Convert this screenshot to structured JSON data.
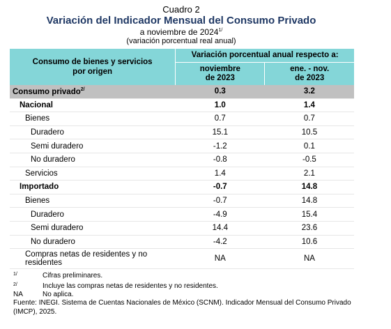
{
  "header": {
    "cuadro": "Cuadro 2",
    "title": "Variación del Indicador Mensual del Consumo Privado",
    "subtitle": "a noviembre de 2024",
    "subtitle_sup": "1/",
    "note": "(variación porcentual real anual)"
  },
  "table": {
    "label_header": [
      "Consumo de bienes y servicios",
      "por origen"
    ],
    "group_header": "Variación porcentual anual respecto a:",
    "subheaders": [
      [
        "noviembre",
        "de 2023"
      ],
      [
        "ene. - nov.",
        "de 2023"
      ]
    ],
    "rows": [
      {
        "label": "Consumo privado",
        "sup": "2/",
        "values": [
          "0.3",
          "3.2"
        ],
        "level": 0,
        "bold": true,
        "shaded": true
      },
      {
        "label": "Nacional",
        "values": [
          "1.0",
          "1.4"
        ],
        "level": 1,
        "bold": true
      },
      {
        "label": "Bienes",
        "values": [
          "0.7",
          "0.7"
        ],
        "level": 2
      },
      {
        "label": "Duradero",
        "values": [
          "15.1",
          "10.5"
        ],
        "level": 3
      },
      {
        "label": "Semi duradero",
        "values": [
          "-1.2",
          "0.1"
        ],
        "level": 3
      },
      {
        "label": "No duradero",
        "values": [
          "-0.8",
          "-0.5"
        ],
        "level": 3
      },
      {
        "label": "Servicios",
        "values": [
          "1.4",
          "2.1"
        ],
        "level": 2
      },
      {
        "label": "Importado",
        "values": [
          "-0.7",
          "14.8"
        ],
        "level": 1,
        "bold": true
      },
      {
        "label": "Bienes",
        "values": [
          "-0.7",
          "14.8"
        ],
        "level": 2
      },
      {
        "label": "Duradero",
        "values": [
          "-4.9",
          "15.4"
        ],
        "level": 3
      },
      {
        "label": "Semi duradero",
        "values": [
          "14.4",
          "23.6"
        ],
        "level": 3
      },
      {
        "label": "No duradero",
        "values": [
          "-4.2",
          "10.6"
        ],
        "level": 3
      },
      {
        "label": "Compras netas de residentes y no residentes",
        "values": [
          "NA",
          "NA"
        ],
        "level": 2
      }
    ]
  },
  "footnotes": [
    {
      "mark": "1/",
      "text": "Cifras preliminares."
    },
    {
      "mark": "2/",
      "text": "Incluye las compras netas de residentes y no residentes."
    },
    {
      "mark": "NA",
      "text": "No aplica."
    }
  ],
  "source": "Fuente: INEGI. Sistema de Cuentas Nacionales de México (SCNM). Indicador Mensual del Consumo Privado (IMCP), 2025."
}
